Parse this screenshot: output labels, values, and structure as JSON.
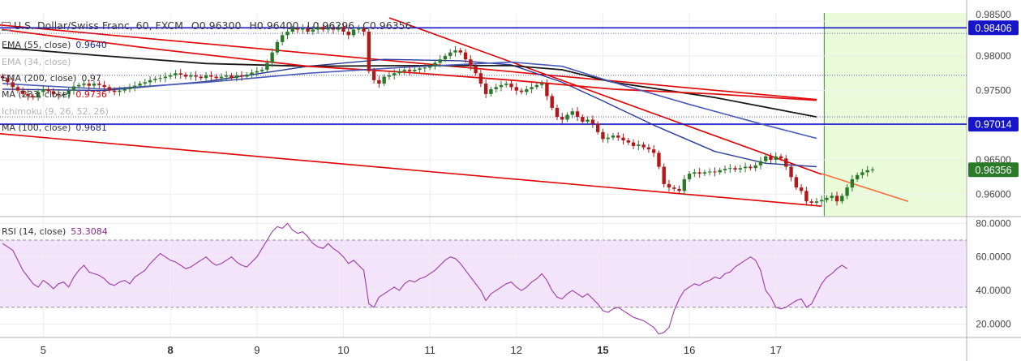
{
  "header": {
    "title": "U.S. Dollar/Swiss Franc, 60, FXCM",
    "ohlc": [
      "O0.96300",
      "H0.96400",
      "L0.96296",
      "C0.96356"
    ]
  },
  "legends": [
    {
      "label": "EMA (55, close)",
      "value": "0.9640",
      "color": "#1e2a8a"
    },
    {
      "label": "EMA (34, close)",
      "value": "",
      "color": "#aaaaaa"
    },
    {
      "label": "EMA (200, close)",
      "value": "0.97",
      "color": "#333333"
    },
    {
      "label": "MA (233, close)",
      "value": "0.9736",
      "color": "#e00000"
    },
    {
      "label": "Ichimoku (9, 26, 52, 26)",
      "value": "",
      "color": "#aaaaaa"
    },
    {
      "label": "MA (100, close)",
      "value": "0.9681",
      "color": "#1e2a8a"
    }
  ],
  "rsi_legend": {
    "label": "RSI (14, close)",
    "value": "53.3084",
    "color": "#8a2a8a"
  },
  "colors": {
    "up": "#2a7a2a",
    "down": "#b01a1a",
    "level": "#1616c8",
    "trend": "#e00000",
    "forecast": "#ff6a3a",
    "future_zone": "#e9fbd9",
    "rsi_band": "#f3e4fb",
    "rsi_line": "#9b3aa8"
  },
  "chart_data": [
    {
      "type": "candlestick",
      "title": "U.S. Dollar/Swiss Franc, 60, FXCM",
      "x_ticks": [
        "5",
        "8",
        "9",
        "10",
        "11",
        "12",
        "15",
        "16",
        "17"
      ],
      "x_tick_index": [
        8,
        33,
        50,
        67,
        84,
        101,
        118,
        135,
        152
      ],
      "ylim": [
        0.9568,
        0.9862
      ],
      "y_ticks": [
        "0.98000",
        "0.97500",
        "0.96500",
        "0.96000"
      ],
      "y_top_partial": "0.98500",
      "levels": [
        0.98406,
        0.97014
      ],
      "level_labels": [
        "0.98406",
        "0.97014"
      ],
      "last_price": 0.96356,
      "last_label": "0.96356",
      "close": [
        0.9768,
        0.9762,
        0.9755,
        0.975,
        0.9745,
        0.9742,
        0.974,
        0.9748,
        0.9752,
        0.9749,
        0.9745,
        0.9743,
        0.9745,
        0.975,
        0.9756,
        0.9758,
        0.976,
        0.9757,
        0.976,
        0.9758,
        0.9755,
        0.975,
        0.9748,
        0.975,
        0.9752,
        0.9755,
        0.9757,
        0.976,
        0.9762,
        0.9765,
        0.9767,
        0.9768,
        0.977,
        0.9772,
        0.9775,
        0.9773,
        0.977,
        0.9772,
        0.977,
        0.9768,
        0.9772,
        0.977,
        0.9768,
        0.977,
        0.9772,
        0.9768,
        0.9772,
        0.977,
        0.9773,
        0.9776,
        0.9778,
        0.978,
        0.979,
        0.9805,
        0.982,
        0.983,
        0.9835,
        0.984,
        0.9838,
        0.984,
        0.9835,
        0.9838,
        0.9842,
        0.9838,
        0.984,
        0.9838,
        0.9842,
        0.9835,
        0.983,
        0.9838,
        0.984,
        0.9835,
        0.9778,
        0.9765,
        0.976,
        0.977,
        0.9772,
        0.9775,
        0.9778,
        0.978,
        0.9778,
        0.978,
        0.9782,
        0.9783,
        0.9785,
        0.979,
        0.9795,
        0.98,
        0.9805,
        0.9808,
        0.9805,
        0.9795,
        0.9785,
        0.9775,
        0.976,
        0.9745,
        0.9752,
        0.9755,
        0.9758,
        0.976,
        0.9755,
        0.975,
        0.9748,
        0.9752,
        0.9755,
        0.9758,
        0.976,
        0.9742,
        0.9725,
        0.9712,
        0.9708,
        0.9715,
        0.972,
        0.9712,
        0.9705,
        0.9708,
        0.9702,
        0.969,
        0.968,
        0.9682,
        0.9685,
        0.9682,
        0.9678,
        0.9675,
        0.967,
        0.9672,
        0.9668,
        0.9665,
        0.966,
        0.964,
        0.9615,
        0.961,
        0.9608,
        0.9605,
        0.9622,
        0.963,
        0.9632,
        0.963,
        0.9632,
        0.9633,
        0.9632,
        0.9635,
        0.9637,
        0.9638,
        0.9636,
        0.9638,
        0.964,
        0.9638,
        0.9642,
        0.9648,
        0.9655,
        0.965,
        0.9655,
        0.9652,
        0.964,
        0.9625,
        0.961,
        0.9605,
        0.959,
        0.9588,
        0.959,
        0.9592,
        0.9595,
        0.9598,
        0.959,
        0.9598,
        0.961,
        0.9622,
        0.9628,
        0.9632,
        0.9635,
        0.9636
      ],
      "series": [
        {
          "name": "EMA (55, close)",
          "values": [
            [
              0,
              0.9752
            ],
            [
              20,
              0.975
            ],
            [
              40,
              0.9763
            ],
            [
              60,
              0.9785
            ],
            [
              75,
              0.9795
            ],
            [
              90,
              0.9793
            ],
            [
              100,
              0.9787
            ],
            [
              110,
              0.9762
            ],
            [
              118,
              0.9735
            ],
            [
              128,
              0.97
            ],
            [
              140,
              0.9662
            ],
            [
              150,
              0.9645
            ],
            [
              160,
              0.964
            ]
          ]
        },
        {
          "name": "EMA (200, close)",
          "values": [
            [
              0,
              0.9812
            ],
            [
              20,
              0.98
            ],
            [
              40,
              0.9789
            ],
            [
              60,
              0.9785
            ],
            [
              80,
              0.9786
            ],
            [
              100,
              0.9786
            ],
            [
              110,
              0.978
            ],
            [
              120,
              0.9762
            ],
            [
              140,
              0.974
            ],
            [
              160,
              0.9712
            ]
          ]
        },
        {
          "name": "MA (233, close)",
          "values": [
            [
              0,
              0.9838
            ],
            [
              30,
              0.981
            ],
            [
              60,
              0.9785
            ],
            [
              80,
              0.9776
            ],
            [
              100,
              0.9765
            ],
            [
              120,
              0.9752
            ],
            [
              140,
              0.9745
            ],
            [
              160,
              0.9736
            ]
          ]
        },
        {
          "name": "MA (100, close)",
          "values": [
            [
              0,
              0.976
            ],
            [
              20,
              0.9752
            ],
            [
              40,
              0.9762
            ],
            [
              60,
              0.9775
            ],
            [
              80,
              0.9784
            ],
            [
              100,
              0.9791
            ],
            [
              110,
              0.9785
            ],
            [
              120,
              0.9762
            ],
            [
              135,
              0.973
            ],
            [
              150,
              0.97
            ],
            [
              160,
              0.9681
            ]
          ]
        }
      ],
      "trendlines": [
        {
          "from": [
            -1,
            0.9688
          ],
          "to": [
            161,
            0.9583
          ]
        },
        {
          "from": [
            76,
            0.9855
          ],
          "to": [
            161,
            0.9629
          ]
        },
        {
          "from": [
            -1,
            0.9845
          ],
          "to": [
            160,
            0.9737
          ]
        }
      ],
      "forecast": {
        "from": [
          161,
          0.963
        ],
        "to": [
          178,
          0.959
        ]
      },
      "future_start_index": 162
    },
    {
      "type": "line",
      "title": "RSI (14, close)",
      "ylim": [
        12,
        84
      ],
      "band": [
        30,
        70
      ],
      "y_ticks": [
        "80.0000",
        "60.0000",
        "40.0000",
        "20.0000"
      ],
      "last_value": "53.3084",
      "values": [
        68,
        66,
        64,
        58,
        52,
        48,
        44,
        42,
        46,
        44,
        41,
        44,
        45,
        42,
        48,
        52,
        55,
        51,
        50,
        49,
        47,
        44,
        43,
        45,
        46,
        44,
        48,
        50,
        52,
        56,
        59,
        62,
        60,
        58,
        57,
        55,
        53,
        54,
        56,
        58,
        60,
        57,
        55,
        56,
        58,
        60,
        57,
        55,
        54,
        57,
        60,
        65,
        70,
        75,
        78,
        77,
        80,
        76,
        74,
        75,
        72,
        68,
        66,
        65,
        68,
        65,
        63,
        60,
        56,
        58,
        55,
        52,
        32,
        30,
        36,
        38,
        40,
        42,
        40,
        44,
        46,
        45,
        47,
        48,
        50,
        52,
        55,
        58,
        60,
        59,
        56,
        52,
        48,
        44,
        40,
        34,
        38,
        40,
        42,
        44,
        45,
        42,
        40,
        42,
        45,
        47,
        50,
        46,
        40,
        36,
        35,
        38,
        40,
        38,
        36,
        38,
        35,
        32,
        28,
        27,
        29,
        30,
        28,
        26,
        24,
        23,
        22,
        20,
        18,
        14,
        15,
        18,
        28,
        35,
        40,
        42,
        44,
        43,
        45,
        46,
        48,
        47,
        50,
        51,
        54,
        56,
        58,
        60,
        58,
        52,
        40,
        36,
        30,
        29,
        30,
        32,
        34,
        35,
        30,
        32,
        38,
        44,
        48,
        50,
        53,
        55,
        53
      ]
    }
  ]
}
